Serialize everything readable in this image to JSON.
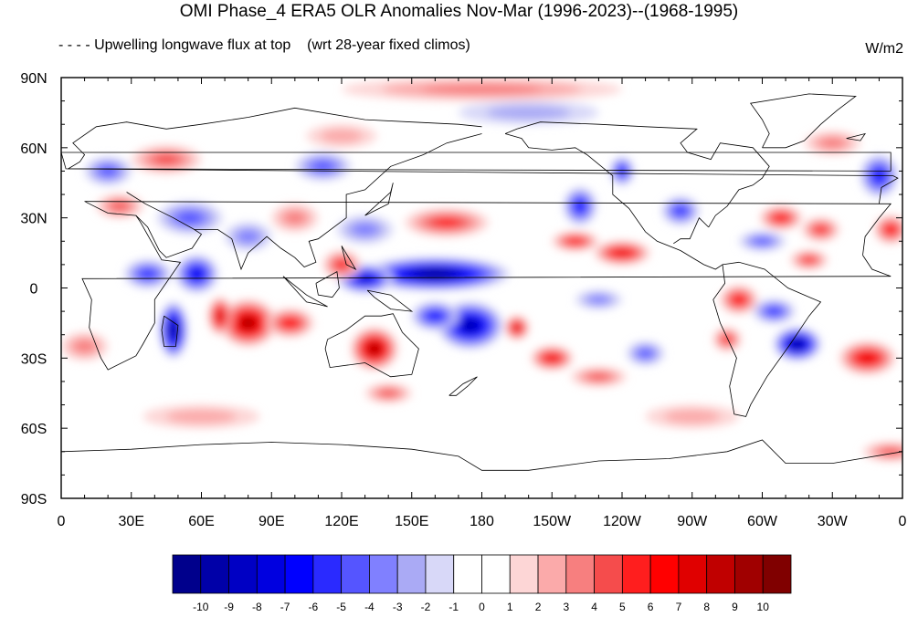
{
  "title": "OMI Phase_4 ERA5 OLR Anomalies Nov-Mar (1996-2023)--(1968-1995)",
  "subtitle_left": "- - - - Upwelling longwave flux at top    (wrt 28-year fixed climos)",
  "units": "W/m2",
  "map": {
    "projection": "cylindrical-equidistant",
    "lon_range": [
      0,
      360
    ],
    "lat_range": [
      -90,
      90
    ],
    "x_ticks": [
      {
        "lon": 0,
        "label": "0"
      },
      {
        "lon": 30,
        "label": "30E"
      },
      {
        "lon": 60,
        "label": "60E"
      },
      {
        "lon": 90,
        "label": "90E"
      },
      {
        "lon": 120,
        "label": "120E"
      },
      {
        "lon": 150,
        "label": "150E"
      },
      {
        "lon": 180,
        "label": "180"
      },
      {
        "lon": 210,
        "label": "150W"
      },
      {
        "lon": 240,
        "label": "120W"
      },
      {
        "lon": 270,
        "label": "90W"
      },
      {
        "lon": 300,
        "label": "60W"
      },
      {
        "lon": 330,
        "label": "30W"
      },
      {
        "lon": 360,
        "label": "0"
      }
    ],
    "y_ticks": [
      {
        "lat": 90,
        "label": "90N"
      },
      {
        "lat": 60,
        "label": "60N"
      },
      {
        "lat": 30,
        "label": "30N"
      },
      {
        "lat": 0,
        "label": "0"
      },
      {
        "lat": -30,
        "label": "30S"
      },
      {
        "lat": -60,
        "label": "60S"
      },
      {
        "lat": -90,
        "label": "90S"
      }
    ]
  },
  "colorbar": {
    "labels": [
      "-10",
      "-9",
      "-8",
      "-7",
      "-6",
      "-5",
      "-4",
      "-3",
      "-2",
      "-1",
      "0",
      "1",
      "2",
      "3",
      "4",
      "5",
      "6",
      "7",
      "8",
      "9",
      "10"
    ],
    "colors": [
      "#00008c",
      "#0000a8",
      "#0000c4",
      "#0000e0",
      "#0000ff",
      "#2a2aff",
      "#5555ff",
      "#8080ff",
      "#aaaaf5",
      "#d8d8f8",
      "#ffffff",
      "#ffffff",
      "#fdd6d6",
      "#fbaaaa",
      "#f77f7f",
      "#f54c4c",
      "#ff1e1e",
      "#ff0000",
      "#e00000",
      "#c00000",
      "#a00000",
      "#800000"
    ]
  },
  "anomaly_blobs": [
    {
      "lon": 160,
      "lat": 6,
      "rx": 32,
      "ry": 7,
      "value": -10
    },
    {
      "lon": 130,
      "lat": 4,
      "rx": 12,
      "ry": 6,
      "value": -8
    },
    {
      "lon": 175,
      "lat": -16,
      "rx": 14,
      "ry": 10,
      "value": -9
    },
    {
      "lon": 160,
      "lat": -12,
      "rx": 10,
      "ry": 6,
      "value": -6
    },
    {
      "lon": 48,
      "lat": -18,
      "rx": 6,
      "ry": 12,
      "value": -10
    },
    {
      "lon": 58,
      "lat": 6,
      "rx": 9,
      "ry": 8,
      "value": -7
    },
    {
      "lon": 37,
      "lat": 6,
      "rx": 10,
      "ry": 6,
      "value": -5
    },
    {
      "lon": 315,
      "lat": -24,
      "rx": 10,
      "ry": 7,
      "value": -10
    },
    {
      "lon": 305,
      "lat": -10,
      "rx": 9,
      "ry": 5,
      "value": -5
    },
    {
      "lon": 222,
      "lat": 35,
      "rx": 7,
      "ry": 8,
      "value": -6
    },
    {
      "lon": 240,
      "lat": 50,
      "rx": 5,
      "ry": 6,
      "value": -6
    },
    {
      "lon": 265,
      "lat": 33,
      "rx": 8,
      "ry": 6,
      "value": -5
    },
    {
      "lon": 350,
      "lat": 48,
      "rx": 8,
      "ry": 9,
      "value": -6
    },
    {
      "lon": 112,
      "lat": 52,
      "rx": 12,
      "ry": 6,
      "value": -4
    },
    {
      "lon": 55,
      "lat": 30,
      "rx": 14,
      "ry": 7,
      "value": -4
    },
    {
      "lon": 20,
      "lat": 50,
      "rx": 10,
      "ry": 6,
      "value": -4
    },
    {
      "lon": 250,
      "lat": -28,
      "rx": 8,
      "ry": 5,
      "value": -4
    },
    {
      "lon": 130,
      "lat": 25,
      "rx": 12,
      "ry": 6,
      "value": -3
    },
    {
      "lon": 80,
      "lat": 22,
      "rx": 10,
      "ry": 6,
      "value": -3
    },
    {
      "lon": 230,
      "lat": -5,
      "rx": 10,
      "ry": 4,
      "value": -3
    },
    {
      "lon": 300,
      "lat": 20,
      "rx": 10,
      "ry": 4,
      "value": -4
    },
    {
      "lon": 200,
      "lat": 75,
      "rx": 30,
      "ry": 5,
      "value": -2
    },
    {
      "lon": 80,
      "lat": -15,
      "rx": 12,
      "ry": 10,
      "value": 9
    },
    {
      "lon": 68,
      "lat": -12,
      "rx": 5,
      "ry": 8,
      "value": 8
    },
    {
      "lon": 98,
      "lat": -15,
      "rx": 10,
      "ry": 6,
      "value": 6
    },
    {
      "lon": 134,
      "lat": -26,
      "rx": 10,
      "ry": 9,
      "value": 9
    },
    {
      "lon": 195,
      "lat": -17,
      "rx": 5,
      "ry": 5,
      "value": 8
    },
    {
      "lon": 210,
      "lat": -30,
      "rx": 9,
      "ry": 5,
      "value": 7
    },
    {
      "lon": 230,
      "lat": -38,
      "rx": 12,
      "ry": 4,
      "value": 4
    },
    {
      "lon": 240,
      "lat": 15,
      "rx": 12,
      "ry": 5,
      "value": 7
    },
    {
      "lon": 220,
      "lat": 20,
      "rx": 10,
      "ry": 4,
      "value": 6
    },
    {
      "lon": 165,
      "lat": 28,
      "rx": 18,
      "ry": 6,
      "value": 5
    },
    {
      "lon": 120,
      "lat": 10,
      "rx": 8,
      "ry": 6,
      "value": 5
    },
    {
      "lon": 290,
      "lat": -5,
      "rx": 8,
      "ry": 6,
      "value": 6
    },
    {
      "lon": 285,
      "lat": -22,
      "rx": 6,
      "ry": 5,
      "value": 5
    },
    {
      "lon": 345,
      "lat": -30,
      "rx": 12,
      "ry": 7,
      "value": 7
    },
    {
      "lon": 308,
      "lat": 30,
      "rx": 9,
      "ry": 5,
      "value": 6
    },
    {
      "lon": 325,
      "lat": 25,
      "rx": 8,
      "ry": 5,
      "value": 5
    },
    {
      "lon": 320,
      "lat": 12,
      "rx": 8,
      "ry": 4,
      "value": 5
    },
    {
      "lon": 355,
      "lat": 25,
      "rx": 7,
      "ry": 6,
      "value": 6
    },
    {
      "lon": 45,
      "lat": 55,
      "rx": 15,
      "ry": 6,
      "value": 4
    },
    {
      "lon": 25,
      "lat": 35,
      "rx": 10,
      "ry": 5,
      "value": 4
    },
    {
      "lon": 100,
      "lat": 30,
      "rx": 10,
      "ry": 6,
      "value": 3
    },
    {
      "lon": 140,
      "lat": -45,
      "rx": 10,
      "ry": 4,
      "value": 4
    },
    {
      "lon": 10,
      "lat": -25,
      "rx": 10,
      "ry": 6,
      "value": 3
    },
    {
      "lon": 180,
      "lat": 85,
      "rx": 60,
      "ry": 5,
      "value": 3
    },
    {
      "lon": 355,
      "lat": -70,
      "rx": 12,
      "ry": 4,
      "value": 4
    },
    {
      "lon": 270,
      "lat": -55,
      "rx": 20,
      "ry": 5,
      "value": 2
    },
    {
      "lon": 60,
      "lat": -55,
      "rx": 25,
      "ry": 5,
      "value": 2
    },
    {
      "lon": 120,
      "lat": 65,
      "rx": 15,
      "ry": 5,
      "value": 2
    },
    {
      "lon": 330,
      "lat": 62,
      "rx": 12,
      "ry": 5,
      "value": 3
    }
  ],
  "coastlines": [
    [
      [
        -17,
        14
      ],
      [
        -16,
        22
      ],
      [
        -10,
        30
      ],
      [
        -5,
        36
      ],
      [
        10,
        37
      ],
      [
        20,
        32
      ],
      [
        32,
        31
      ],
      [
        34,
        28
      ],
      [
        43,
        12
      ],
      [
        51,
        11
      ],
      [
        40,
        -5
      ],
      [
        40,
        -15
      ],
      [
        35,
        -24
      ],
      [
        32,
        -29
      ],
      [
        20,
        -35
      ],
      [
        17,
        -30
      ],
      [
        12,
        -17
      ],
      [
        13,
        -5
      ],
      [
        9,
        4
      ],
      [
        -5,
        5
      ],
      [
        -13,
        8
      ],
      [
        -17,
        14
      ]
    ],
    [
      [
        44,
        -12
      ],
      [
        50,
        -16
      ],
      [
        49,
        -25
      ],
      [
        44,
        -25
      ],
      [
        43,
        -18
      ],
      [
        44,
        -12
      ]
    ],
    [
      [
        114,
        -22
      ],
      [
        122,
        -18
      ],
      [
        130,
        -12
      ],
      [
        137,
        -12
      ],
      [
        142,
        -11
      ],
      [
        146,
        -19
      ],
      [
        153,
        -26
      ],
      [
        150,
        -37
      ],
      [
        141,
        -38
      ],
      [
        130,
        -32
      ],
      [
        115,
        -34
      ],
      [
        113,
        -26
      ],
      [
        114,
        -22
      ]
    ],
    [
      [
        166,
        -46
      ],
      [
        172,
        -41
      ],
      [
        178,
        -38
      ],
      [
        174,
        -42
      ],
      [
        169,
        -46
      ],
      [
        166,
        -46
      ]
    ],
    [
      [
        95,
        5
      ],
      [
        105,
        -6
      ],
      [
        110,
        -7
      ],
      [
        114,
        -8
      ],
      [
        105,
        -3
      ],
      [
        95,
        5
      ]
    ],
    [
      [
        109,
        2
      ],
      [
        118,
        7
      ],
      [
        119,
        0
      ],
      [
        116,
        -4
      ],
      [
        110,
        -3
      ],
      [
        109,
        2
      ]
    ],
    [
      [
        131,
        -1
      ],
      [
        141,
        -3
      ],
      [
        150,
        -10
      ],
      [
        141,
        -9
      ],
      [
        134,
        -4
      ],
      [
        131,
        -1
      ]
    ],
    [
      [
        120,
        18
      ],
      [
        126,
        8
      ],
      [
        122,
        10
      ],
      [
        120,
        18
      ]
    ],
    [
      [
        130,
        31
      ],
      [
        141,
        41
      ],
      [
        142,
        45
      ],
      [
        140,
        36
      ],
      [
        130,
        31
      ]
    ],
    [
      [
        28,
        41
      ],
      [
        36,
        36
      ],
      [
        48,
        30
      ],
      [
        57,
        25
      ],
      [
        60,
        23
      ],
      [
        56,
        17
      ],
      [
        45,
        13
      ],
      [
        42,
        16
      ],
      [
        37,
        26
      ],
      [
        32,
        31
      ]
    ],
    [
      [
        57,
        25
      ],
      [
        67,
        25
      ],
      [
        73,
        21
      ],
      [
        77,
        8
      ],
      [
        80,
        15
      ],
      [
        88,
        22
      ],
      [
        94,
        17
      ],
      [
        100,
        13
      ],
      [
        104,
        9
      ],
      [
        109,
        11
      ],
      [
        106,
        20
      ],
      [
        110,
        21
      ],
      [
        122,
        30
      ],
      [
        122,
        40
      ],
      [
        130,
        42
      ],
      [
        141,
        52
      ],
      [
        155,
        57
      ],
      [
        165,
        62
      ],
      [
        180,
        66
      ]
    ],
    [
      [
        -10,
        36
      ],
      [
        -9,
        43
      ],
      [
        -2,
        47
      ],
      [
        -4,
        48
      ],
      [
        3,
        51
      ],
      [
        8,
        54
      ],
      [
        10,
        57
      ],
      [
        5,
        62
      ],
      [
        15,
        69
      ],
      [
        28,
        71
      ],
      [
        45,
        68
      ],
      [
        60,
        70
      ],
      [
        80,
        73
      ],
      [
        100,
        77
      ],
      [
        130,
        72
      ],
      [
        150,
        71
      ],
      [
        170,
        70
      ],
      [
        180,
        69
      ]
    ],
    [
      [
        190,
        66
      ],
      [
        197,
        64
      ],
      [
        200,
        60
      ],
      [
        210,
        59
      ],
      [
        220,
        60
      ],
      [
        225,
        57
      ],
      [
        236,
        48
      ],
      [
        236,
        40
      ],
      [
        243,
        34
      ],
      [
        250,
        24
      ],
      [
        255,
        20
      ],
      [
        265,
        16
      ],
      [
        275,
        10
      ],
      [
        280,
        8
      ],
      [
        283,
        10
      ],
      [
        284,
        2
      ],
      [
        279,
        -5
      ],
      [
        282,
        -15
      ],
      [
        289,
        -30
      ],
      [
        286,
        -42
      ],
      [
        288,
        -54
      ],
      [
        293,
        -55
      ],
      [
        295,
        -50
      ],
      [
        302,
        -38
      ],
      [
        312,
        -24
      ],
      [
        320,
        -12
      ],
      [
        325,
        -6
      ],
      [
        311,
        0
      ],
      [
        301,
        8
      ],
      [
        290,
        11
      ],
      [
        283,
        10
      ]
    ],
    [
      [
        277,
        26
      ],
      [
        280,
        31
      ],
      [
        285,
        35
      ],
      [
        290,
        42
      ],
      [
        296,
        44
      ],
      [
        300,
        47
      ],
      [
        303,
        52
      ],
      [
        296,
        60
      ],
      [
        282,
        62
      ],
      [
        278,
        55
      ],
      [
        268,
        58
      ],
      [
        265,
        62
      ],
      [
        272,
        68
      ],
      [
        250,
        69
      ],
      [
        230,
        70
      ],
      [
        205,
        71
      ],
      [
        195,
        68
      ],
      [
        190,
        66
      ]
    ],
    [
      [
        262,
        19
      ],
      [
        265,
        21
      ],
      [
        269,
        21
      ],
      [
        273,
        30
      ],
      [
        277,
        26
      ]
    ],
    [
      [
        300,
        60
      ],
      [
        310,
        60
      ],
      [
        318,
        63
      ],
      [
        325,
        70
      ],
      [
        332,
        76
      ],
      [
        340,
        82
      ],
      [
        320,
        83
      ],
      [
        295,
        79
      ],
      [
        300,
        72
      ],
      [
        303,
        66
      ],
      [
        300,
        60
      ]
    ],
    [
      [
        336,
        64
      ],
      [
        344,
        66
      ],
      [
        342,
        63
      ],
      [
        336,
        64
      ]
    ],
    [
      [
        -5,
        50
      ],
      [
        2,
        51
      ],
      [
        0,
        58
      ],
      [
        -5,
        58
      ],
      [
        -5,
        50
      ]
    ],
    [
      [
        0,
        -70
      ],
      [
        30,
        -69
      ],
      [
        60,
        -67
      ],
      [
        90,
        -66
      ],
      [
        120,
        -67
      ],
      [
        150,
        -69
      ],
      [
        170,
        -72
      ],
      [
        180,
        -78
      ],
      [
        200,
        -78
      ],
      [
        230,
        -74
      ],
      [
        260,
        -73
      ],
      [
        285,
        -70
      ],
      [
        300,
        -65
      ],
      [
        310,
        -75
      ],
      [
        330,
        -75
      ],
      [
        360,
        -70
      ]
    ]
  ]
}
